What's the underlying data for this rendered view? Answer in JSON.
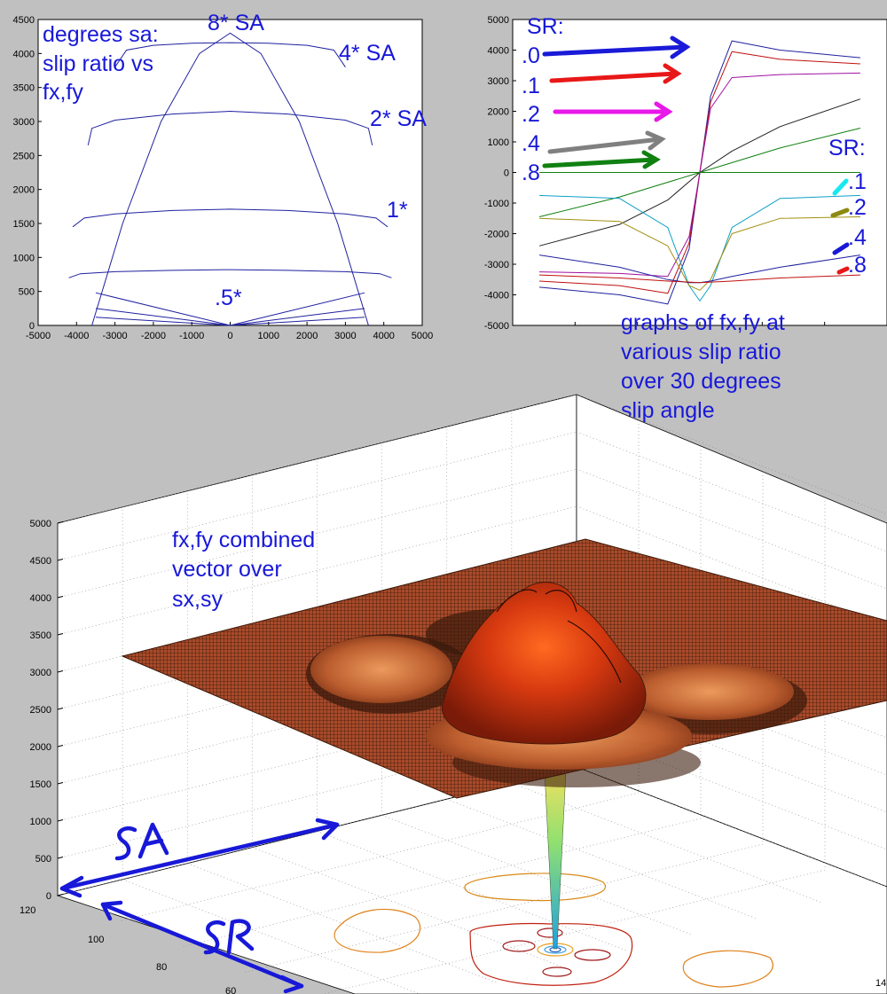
{
  "chart_data": [
    {
      "type": "line",
      "title": "",
      "x_ticks": [
        "-5000",
        "-4000",
        "-3000",
        "-2000",
        "-1000",
        "0",
        "1000",
        "2000",
        "3000",
        "4000",
        "5000"
      ],
      "y_ticks": [
        "0",
        "500",
        "1000",
        "1500",
        "2000",
        "2500",
        "3000",
        "3500",
        "4000",
        "4500"
      ],
      "xlim": [
        -5000,
        5000
      ],
      "ylim": [
        0,
        4500
      ],
      "line_color": "#2020a0",
      "annotations": {
        "title_note": [
          "degrees sa:",
          "slip ratio vs",
          "fx,fy"
        ],
        "sa8": "8* SA",
        "sa4": "4* SA",
        "sa2": "2* SA",
        "sa1": "1*",
        "sa05": ".5*"
      },
      "series": [
        {
          "label": ".5*",
          "x": [
            -4200,
            -3900,
            -3000,
            -1500,
            0,
            1500,
            3000,
            3900,
            4200
          ],
          "y": [
            700,
            760,
            790,
            810,
            820,
            810,
            790,
            760,
            700
          ]
        },
        {
          "label": "1*",
          "x": [
            -4100,
            -3800,
            -3000,
            -1500,
            0,
            1500,
            3000,
            3800,
            4100
          ],
          "y": [
            1450,
            1580,
            1640,
            1690,
            1710,
            1690,
            1640,
            1580,
            1450
          ]
        },
        {
          "label": "2* SA",
          "x": [
            -3700,
            -3600,
            -3000,
            -1500,
            0,
            1500,
            3000,
            3600,
            3700
          ],
          "y": [
            2650,
            2900,
            3020,
            3110,
            3150,
            3110,
            3020,
            2900,
            2650
          ]
        },
        {
          "label": "4* SA",
          "x": [
            -3000,
            -2700,
            -2000,
            -1000,
            0,
            1000,
            2000,
            2700,
            3000
          ],
          "y": [
            3800,
            4050,
            4120,
            4150,
            4160,
            4150,
            4120,
            4050,
            3800
          ]
        },
        {
          "label": "8* SA",
          "x": [
            -3600,
            -2800,
            -1800,
            -800,
            0,
            800,
            1800,
            2800,
            3600
          ],
          "y": [
            0,
            1500,
            3000,
            4000,
            4300,
            4000,
            3000,
            1500,
            0
          ]
        }
      ]
    },
    {
      "type": "line",
      "title": "",
      "y_ticks": [
        "5000",
        "4000",
        "3000",
        "2000",
        "1000",
        "0",
        "-1000",
        "-2000",
        "-3000",
        "-4000",
        "-5000"
      ],
      "ylim": [
        -5000,
        5000
      ],
      "annotations": {
        "sr_header_left": "SR:",
        "sr_left": [
          ".0",
          ".1",
          ".2",
          ".4",
          ".8"
        ],
        "sr_header_right": "SR:",
        "sr_right": [
          ".1",
          ".2",
          ".4",
          ".8"
        ],
        "caption": [
          "graphs of fx,fy at",
          "various slip ratio",
          "over 30 degrees",
          "slip angle"
        ]
      },
      "arrow_colors": [
        "#1a1ad8",
        "#e81818",
        "#e818e8",
        "#808080",
        "#108010"
      ],
      "marker_colors": [
        "#18e8f0",
        "#8c8a10",
        "#1818d8",
        "#e81818"
      ],
      "series": [
        {
          "name": "fy SR .0",
          "color": "#2020a0",
          "x": [
            -30,
            -15,
            -6,
            -2,
            0,
            2,
            6,
            15,
            30
          ],
          "y": [
            -3750,
            -4000,
            -4300,
            -2500,
            0,
            2500,
            4300,
            4000,
            3750
          ]
        },
        {
          "name": "fy SR .1",
          "color": "#c01010",
          "x": [
            -30,
            -15,
            -6,
            -2,
            0,
            2,
            6,
            15,
            30
          ],
          "y": [
            -3550,
            -3700,
            -3950,
            -2300,
            0,
            2300,
            3950,
            3700,
            3550
          ]
        },
        {
          "name": "fy SR .2",
          "color": "#a010a0",
          "x": [
            -30,
            -15,
            -6,
            -2,
            0,
            2,
            6,
            15,
            30
          ],
          "y": [
            -3250,
            -3300,
            -3400,
            -2100,
            0,
            2100,
            3100,
            3200,
            3250
          ]
        },
        {
          "name": "fy SR .4",
          "color": "#202020",
          "x": [
            -30,
            -15,
            -6,
            0,
            6,
            15,
            30
          ],
          "y": [
            -2400,
            -1700,
            -900,
            0,
            700,
            1500,
            2400
          ]
        },
        {
          "name": "fy SR .8",
          "color": "#108010",
          "x": [
            -30,
            -15,
            0,
            15,
            30
          ],
          "y": [
            -1450,
            -800,
            0,
            800,
            1450
          ]
        },
        {
          "name": "zero",
          "color": "#108010",
          "x": [
            -30,
            30
          ],
          "y": [
            0,
            0
          ]
        },
        {
          "name": "fx SR .1",
          "color": "#10a0c8",
          "x": [
            -30,
            -15,
            -6,
            -2,
            0,
            2,
            6,
            15,
            30
          ],
          "y": [
            -750,
            -850,
            -1800,
            -3700,
            -4200,
            -3700,
            -1800,
            -850,
            -750
          ]
        },
        {
          "name": "fx SR .2",
          "color": "#a09010",
          "x": [
            -30,
            -15,
            -6,
            -2,
            0,
            2,
            6,
            15,
            30
          ],
          "y": [
            -1500,
            -1600,
            -2400,
            -3700,
            -3850,
            -3500,
            -2000,
            -1500,
            -1450
          ]
        },
        {
          "name": "fx SR .4",
          "color": "#2020a0",
          "x": [
            -30,
            -15,
            -6,
            -2,
            0,
            2,
            6,
            15,
            30
          ],
          "y": [
            -2700,
            -3100,
            -3500,
            -3600,
            -3600,
            -3550,
            -3400,
            -3100,
            -2700
          ]
        },
        {
          "name": "fx SR .8",
          "color": "#c01010",
          "x": [
            -30,
            -15,
            -6,
            0,
            6,
            15,
            30
          ],
          "y": [
            -3350,
            -3450,
            -3550,
            -3600,
            -3550,
            -3450,
            -3350
          ]
        }
      ]
    },
    {
      "type": "surface",
      "title": "",
      "z_ticks": [
        "0",
        "500",
        "1000",
        "1500",
        "2000",
        "2500",
        "3000",
        "3500",
        "4000",
        "4500",
        "5000"
      ],
      "ylim": [
        0,
        5000
      ],
      "side_ticks": [
        "120",
        "100",
        "80",
        "60"
      ],
      "corner_tick": "14",
      "annotations": {
        "note": [
          "fx,fy combined",
          "vector over",
          "sx,sy"
        ],
        "sa": "SA",
        "sr": "SR"
      },
      "surface_colors": [
        "#7a2a14",
        "#d86a2a",
        "#f09050",
        "#e02010"
      ]
    }
  ]
}
